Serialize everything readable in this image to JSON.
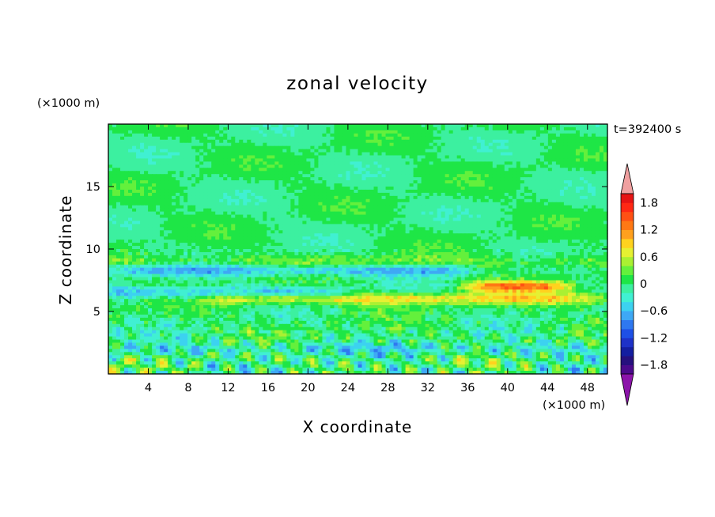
{
  "chart_data": {
    "type": "heatmap",
    "title": "zonal velocity",
    "xlabel": "X coordinate",
    "ylabel": "Z coordinate",
    "x_unit": "(×1000 m)",
    "y_unit": "(×1000 m)",
    "time_label": "t=392400 s",
    "xlim": [
      0,
      50
    ],
    "ylim": [
      0,
      20
    ],
    "x_ticks": [
      4,
      8,
      12,
      16,
      20,
      24,
      28,
      32,
      36,
      40,
      44,
      48
    ],
    "y_ticks": [
      5,
      10,
      15
    ],
    "colorbar": {
      "levels": [
        -2.0,
        -1.8,
        -1.6,
        -1.4,
        -1.2,
        -1.0,
        -0.8,
        -0.6,
        -0.4,
        -0.2,
        0.0,
        0.2,
        0.4,
        0.6,
        0.8,
        1.0,
        1.2,
        1.4,
        1.6,
        1.8,
        2.0
      ],
      "colors": [
        "#4b0a8c",
        "#26107e",
        "#141ea0",
        "#1e32c8",
        "#1e50e6",
        "#2e78f0",
        "#3ea8f5",
        "#3cd2f0",
        "#40f0d2",
        "#3cf0a0",
        "#1ee646",
        "#64f03c",
        "#aaf032",
        "#e6f032",
        "#ffd21e",
        "#ffa01e",
        "#ff7814",
        "#ff5014",
        "#ff2814",
        "#e61414"
      ],
      "under_color": "#8c14aa",
      "over_color": "#f0a0a0",
      "tick_labels": [
        "1.8",
        "1.2",
        "0.6",
        "0",
        "−0.6",
        "−1.2",
        "−1.8"
      ],
      "tick_values": [
        1.8,
        1.2,
        0.6,
        0,
        -0.6,
        -1.2,
        -1.8
      ]
    },
    "features": [
      {
        "z_center": 9.0,
        "velocity": 0.3,
        "x_start": 0,
        "x_end": 50
      },
      {
        "z_center": 8.3,
        "velocity": -0.6,
        "x_start": 0,
        "x_end": 36
      },
      {
        "z_center": 6.5,
        "velocity": -0.6,
        "x_start": 0,
        "x_end": 24
      },
      {
        "z_center": 6.0,
        "velocity": 0.8,
        "x_start": 10,
        "x_end": 50
      },
      {
        "z_center": 7.0,
        "velocity": 1.2,
        "x_start": 36,
        "x_end": 46
      },
      {
        "z_center": 2.0,
        "velocity": -0.3,
        "x_start": 0,
        "x_end": 50
      }
    ]
  }
}
